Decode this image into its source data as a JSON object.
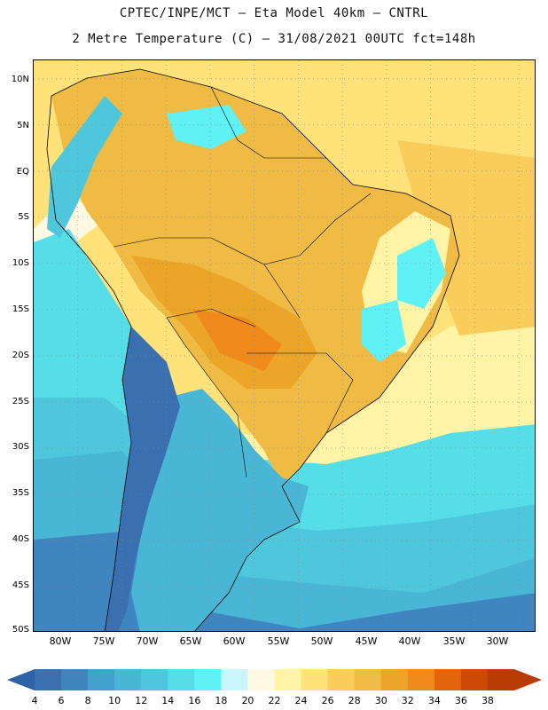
{
  "header": {
    "line1": "CPTEC/INPE/MCT –  Eta Model 40km – CNTRL",
    "line2": "2 Metre Temperature (C) – 31/08/2021 00UTC fct=148h"
  },
  "map": {
    "type": "filled-contour-map",
    "region": "South America",
    "variable": "2 Metre Temperature",
    "units": "C",
    "lat_range": [
      -50,
      12
    ],
    "lon_range": [
      -85,
      -28
    ],
    "lat_labels": [
      "10N",
      "5N",
      "EQ",
      "5S",
      "10S",
      "15S",
      "20S",
      "25S",
      "30S",
      "35S",
      "40S",
      "45S",
      "50S"
    ],
    "lat_values": [
      10,
      5,
      0,
      -5,
      -10,
      -15,
      -20,
      -25,
      -30,
      -35,
      -40,
      -45,
      -50
    ],
    "lon_labels": [
      "80W",
      "75W",
      "70W",
      "65W",
      "60W",
      "55W",
      "50W",
      "45W",
      "40W",
      "35W",
      "30W"
    ],
    "lon_values": [
      -80,
      -75,
      -70,
      -65,
      -60,
      -55,
      -50,
      -45,
      -40,
      -35,
      -30
    ]
  },
  "colorbar": {
    "levels": [
      "4",
      "6",
      "8",
      "10",
      "12",
      "14",
      "16",
      "18",
      "20",
      "22",
      "24",
      "26",
      "28",
      "30",
      "32",
      "34",
      "36",
      "38"
    ],
    "colors": [
      "#3a6fb0",
      "#3f86c0",
      "#44a0cc",
      "#4ab6d6",
      "#4ec7dd",
      "#55dde8",
      "#5ff1f6",
      "#c9f5fb",
      "#fff9e4",
      "#fff4a6",
      "#ffe27a",
      "#f9cd5c",
      "#efbb45",
      "#eba62a",
      "#f08a1d",
      "#e2650c",
      "#cc4a06",
      "#b83c03"
    ],
    "low_color": "#2f62a7",
    "high_color": "#b83c03"
  }
}
